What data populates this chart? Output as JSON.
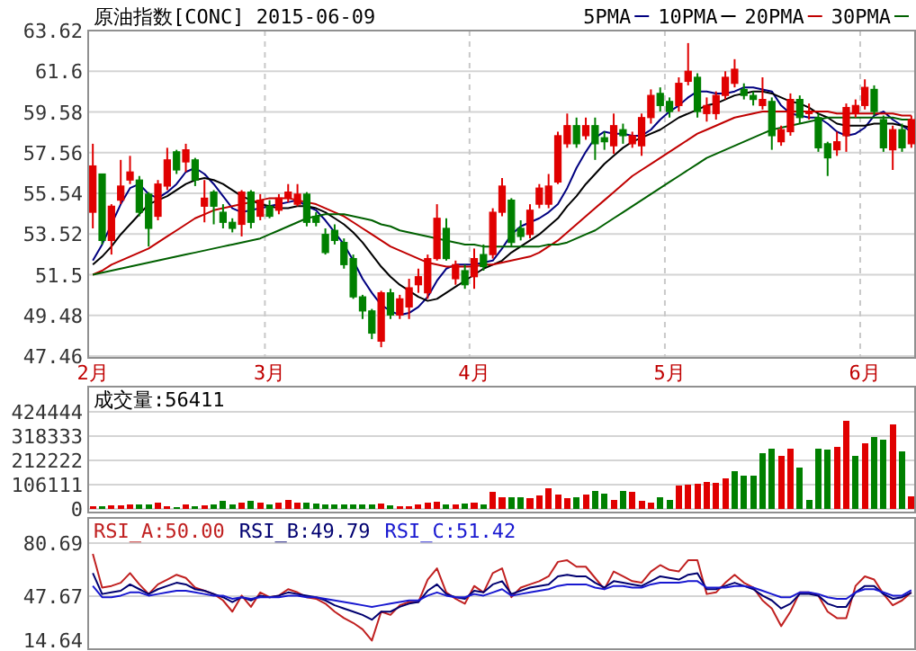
{
  "chart_data": [
    {
      "type": "candlestick",
      "title": "原油指数[CONC] 2015-06-09",
      "categories": [
        "2月",
        null,
        null,
        null,
        null,
        null,
        null,
        null,
        null,
        null,
        null,
        null,
        null,
        null,
        null,
        null,
        null,
        null,
        null,
        "3月",
        null,
        null,
        null,
        null,
        null,
        null,
        null,
        null,
        null,
        null,
        null,
        null,
        null,
        null,
        null,
        null,
        null,
        null,
        null,
        null,
        null,
        "4月",
        null,
        null,
        null,
        null,
        null,
        null,
        null,
        null,
        null,
        null,
        null,
        null,
        null,
        null,
        null,
        null,
        null,
        null,
        null,
        null,
        "5月",
        null,
        null,
        null,
        null,
        null,
        null,
        null,
        null,
        null,
        null,
        null,
        null,
        null,
        null,
        null,
        null,
        null,
        null,
        null,
        null,
        "6月",
        null,
        null,
        null,
        null,
        null
      ],
      "ohlc": [
        [
          54.6,
          58.0,
          53.8,
          56.9
        ],
        [
          56.5,
          56.5,
          53.0,
          53.2
        ],
        [
          53.2,
          55.0,
          52.5,
          54.9
        ],
        [
          55.2,
          57.2,
          55.0,
          55.9
        ],
        [
          56.2,
          57.4,
          56.0,
          56.6
        ],
        [
          56.2,
          56.4,
          54.4,
          54.6
        ],
        [
          55.5,
          55.6,
          52.9,
          53.8
        ],
        [
          54.4,
          56.2,
          54.2,
          56.0
        ],
        [
          55.9,
          57.8,
          55.7,
          57.2
        ],
        [
          57.6,
          57.7,
          56.5,
          56.7
        ],
        [
          57.1,
          58.0,
          56.6,
          57.7
        ],
        [
          57.2,
          57.3,
          55.9,
          56.2
        ],
        [
          54.9,
          56.2,
          54.1,
          55.3
        ],
        [
          55.6,
          55.7,
          54.0,
          54.9
        ],
        [
          54.6,
          55.0,
          53.8,
          54.1
        ],
        [
          54.1,
          54.3,
          53.6,
          53.8
        ],
        [
          54.0,
          55.7,
          53.4,
          55.6
        ],
        [
          55.6,
          55.7,
          53.8,
          54.1
        ],
        [
          54.4,
          55.5,
          54.2,
          55.2
        ],
        [
          54.9,
          55.2,
          54.3,
          54.4
        ],
        [
          54.7,
          55.5,
          54.5,
          55.3
        ],
        [
          55.3,
          56.0,
          55.1,
          55.6
        ],
        [
          55.0,
          56.0,
          54.9,
          55.5
        ],
        [
          55.5,
          55.6,
          53.9,
          54.1
        ],
        [
          54.4,
          54.6,
          53.9,
          54.1
        ],
        [
          53.5,
          53.8,
          52.5,
          52.6
        ],
        [
          53.7,
          54.0,
          53.0,
          53.2
        ],
        [
          53.1,
          53.3,
          51.8,
          52.0
        ],
        [
          52.3,
          52.5,
          50.3,
          50.4
        ],
        [
          50.4,
          50.5,
          49.3,
          49.7
        ],
        [
          49.7,
          49.8,
          48.3,
          48.6
        ],
        [
          48.2,
          50.7,
          47.9,
          50.6
        ],
        [
          50.6,
          50.8,
          49.3,
          49.5
        ],
        [
          49.5,
          50.5,
          49.3,
          50.3
        ],
        [
          49.9,
          51.3,
          49.3,
          50.85
        ],
        [
          51.0,
          51.8,
          50.6,
          51.4
        ],
        [
          50.6,
          52.5,
          50.3,
          52.3
        ],
        [
          52.3,
          55.0,
          52.2,
          54.3
        ],
        [
          53.8,
          54.3,
          52.2,
          52.3
        ],
        [
          51.3,
          52.2,
          51.0,
          52.0
        ],
        [
          51.7,
          52.0,
          50.8,
          51.0
        ],
        [
          51.4,
          52.8,
          50.8,
          52.3
        ],
        [
          52.5,
          53.0,
          51.7,
          51.9
        ],
        [
          52.5,
          54.8,
          52.3,
          54.6
        ],
        [
          54.6,
          56.3,
          54.4,
          55.9
        ],
        [
          55.2,
          55.3,
          52.9,
          53.1
        ],
        [
          53.8,
          54.2,
          53.2,
          53.4
        ],
        [
          53.5,
          55.0,
          53.3,
          54.7
        ],
        [
          55.0,
          56.0,
          54.8,
          55.8
        ],
        [
          55.0,
          56.5,
          54.8,
          55.9
        ],
        [
          56.1,
          58.6,
          56.0,
          58.4
        ],
        [
          58.0,
          59.5,
          57.8,
          58.9
        ],
        [
          58.9,
          59.3,
          57.8,
          58.0
        ],
        [
          58.4,
          59.3,
          58.2,
          58.9
        ],
        [
          58.9,
          59.3,
          57.2,
          58.0
        ],
        [
          58.3,
          58.6,
          57.7,
          58.1
        ],
        [
          57.9,
          59.5,
          57.5,
          58.9
        ],
        [
          58.7,
          59.0,
          58.0,
          58.4
        ],
        [
          58.0,
          58.6,
          57.8,
          58.4
        ],
        [
          57.9,
          59.5,
          57.4,
          59.3
        ],
        [
          59.3,
          60.7,
          59.0,
          60.4
        ],
        [
          60.5,
          60.8,
          59.6,
          59.9
        ],
        [
          60.1,
          60.3,
          59.3,
          59.6
        ],
        [
          59.9,
          61.3,
          59.6,
          61.0
        ],
        [
          61.1,
          63.0,
          60.9,
          61.6
        ],
        [
          61.3,
          61.5,
          59.3,
          59.6
        ],
        [
          59.5,
          60.3,
          59.1,
          59.9
        ],
        [
          59.5,
          60.6,
          59.2,
          60.4
        ],
        [
          60.4,
          61.6,
          60.2,
          61.3
        ],
        [
          61.0,
          62.2,
          60.8,
          61.7
        ],
        [
          60.7,
          61.0,
          60.2,
          60.4
        ],
        [
          60.4,
          60.6,
          59.9,
          60.2
        ],
        [
          59.9,
          61.3,
          59.7,
          60.2
        ],
        [
          60.1,
          60.3,
          57.7,
          58.4
        ],
        [
          58.1,
          58.9,
          57.9,
          58.7
        ],
        [
          58.6,
          60.5,
          58.4,
          60.2
        ],
        [
          60.2,
          60.4,
          59.0,
          59.3
        ],
        [
          59.5,
          60.0,
          59.2,
          59.6
        ],
        [
          59.3,
          59.5,
          57.6,
          57.8
        ],
        [
          58.0,
          58.1,
          56.4,
          57.3
        ],
        [
          57.7,
          58.6,
          57.4,
          58.1
        ],
        [
          58.4,
          60.0,
          57.6,
          59.8
        ],
        [
          59.5,
          60.2,
          59.3,
          59.9
        ],
        [
          59.9,
          61.2,
          59.7,
          60.8
        ],
        [
          60.7,
          60.9,
          59.4,
          59.6
        ],
        [
          59.2,
          59.4,
          57.6,
          57.8
        ],
        [
          57.7,
          58.9,
          56.7,
          58.7
        ],
        [
          58.7,
          59.0,
          57.6,
          57.8
        ],
        [
          58.0,
          59.4,
          57.8,
          59.2
        ]
      ],
      "series": [
        {
          "name": "5PMA",
          "type": "line",
          "color": "#000080",
          "values": [
            52.2,
            53.0,
            54.0,
            55.0,
            55.8,
            56.0,
            55.5,
            55.3,
            55.6,
            56.0,
            56.6,
            56.8,
            56.5,
            56.0,
            55.4,
            54.8,
            54.6,
            54.7,
            54.8,
            54.9,
            55.0,
            55.1,
            55.2,
            54.9,
            54.7,
            54.2,
            53.6,
            53.0,
            52.2,
            51.3,
            50.6,
            50.0,
            49.7,
            49.5,
            49.6,
            49.9,
            50.4,
            51.2,
            51.8,
            52.0,
            52.0,
            52.0,
            52.1,
            52.2,
            52.8,
            53.5,
            53.9,
            54.1,
            54.3,
            54.6,
            55.0,
            55.8,
            56.8,
            57.6,
            58.3,
            58.6,
            58.5,
            58.5,
            58.4,
            58.4,
            58.7,
            59.2,
            59.6,
            59.9,
            60.3,
            60.6,
            60.6,
            60.5,
            60.5,
            60.6,
            60.8,
            60.8,
            60.7,
            60.6,
            59.9,
            59.5,
            59.4,
            59.3,
            59.3,
            59.0,
            58.6,
            58.4,
            58.5,
            58.8,
            59.4,
            59.6,
            59.2,
            58.9,
            58.6
          ]
        },
        {
          "name": "10PMA",
          "type": "line",
          "color": "#000000",
          "values": [
            52.0,
            52.4,
            52.9,
            53.5,
            54.0,
            54.5,
            55.0,
            55.2,
            55.4,
            55.7,
            56.0,
            56.2,
            56.3,
            56.2,
            56.0,
            55.7,
            55.4,
            55.2,
            55.0,
            54.9,
            54.8,
            54.8,
            54.9,
            54.9,
            54.8,
            54.6,
            54.3,
            54.0,
            53.6,
            53.1,
            52.5,
            51.9,
            51.4,
            51.0,
            50.7,
            50.4,
            50.2,
            50.3,
            50.6,
            50.9,
            51.2,
            51.5,
            51.8,
            52.0,
            52.2,
            52.6,
            52.9,
            53.2,
            53.5,
            53.9,
            54.3,
            54.9,
            55.4,
            56.0,
            56.5,
            57.0,
            57.4,
            57.8,
            58.1,
            58.3,
            58.5,
            58.7,
            59.0,
            59.3,
            59.5,
            59.7,
            59.9,
            60.0,
            60.2,
            60.4,
            60.5,
            60.6,
            60.6,
            60.5,
            60.3,
            60.1,
            60.0,
            59.8,
            59.5,
            59.3,
            59.0,
            58.9,
            58.9,
            58.9,
            59.0,
            59.0,
            59.0,
            58.9,
            58.8
          ]
        },
        {
          "name": "20PMA",
          "type": "line",
          "color": "#c00000",
          "values": [
            51.5,
            51.7,
            52.0,
            52.2,
            52.4,
            52.6,
            52.8,
            53.1,
            53.4,
            53.7,
            54.0,
            54.3,
            54.5,
            54.7,
            54.8,
            54.9,
            55.0,
            55.1,
            55.2,
            55.3,
            55.3,
            55.3,
            55.2,
            55.1,
            55.0,
            54.8,
            54.6,
            54.4,
            54.1,
            53.8,
            53.5,
            53.2,
            52.9,
            52.7,
            52.5,
            52.3,
            52.1,
            52.0,
            51.9,
            51.9,
            51.9,
            51.9,
            52.0,
            52.0,
            52.1,
            52.2,
            52.3,
            52.4,
            52.6,
            52.9,
            53.2,
            53.6,
            54.0,
            54.4,
            54.8,
            55.2,
            55.6,
            56.0,
            56.4,
            56.7,
            57.0,
            57.3,
            57.6,
            57.9,
            58.2,
            58.5,
            58.7,
            58.9,
            59.1,
            59.3,
            59.4,
            59.5,
            59.6,
            59.6,
            59.6,
            59.6,
            59.6,
            59.6,
            59.6,
            59.6,
            59.5,
            59.5,
            59.5,
            59.5,
            59.5,
            59.5,
            59.5,
            59.4,
            59.4
          ]
        },
        {
          "name": "30PMA",
          "type": "line",
          "color": "#006000",
          "values": [
            51.5,
            51.6,
            51.7,
            51.8,
            51.9,
            52.0,
            52.1,
            52.2,
            52.3,
            52.4,
            52.5,
            52.6,
            52.7,
            52.8,
            52.9,
            53.0,
            53.1,
            53.2,
            53.3,
            53.5,
            53.7,
            53.9,
            54.1,
            54.3,
            54.4,
            54.5,
            54.5,
            54.5,
            54.4,
            54.3,
            54.2,
            54.0,
            53.9,
            53.7,
            53.6,
            53.5,
            53.4,
            53.3,
            53.2,
            53.1,
            53.0,
            53.0,
            52.9,
            52.9,
            52.9,
            52.9,
            52.9,
            52.9,
            52.9,
            53.0,
            53.0,
            53.1,
            53.3,
            53.5,
            53.7,
            54.0,
            54.3,
            54.6,
            54.9,
            55.2,
            55.5,
            55.8,
            56.1,
            56.4,
            56.7,
            57.0,
            57.3,
            57.5,
            57.7,
            57.9,
            58.1,
            58.3,
            58.5,
            58.7,
            58.8,
            58.9,
            59.0,
            59.1,
            59.2,
            59.3,
            59.3,
            59.3,
            59.3,
            59.3,
            59.3,
            59.3,
            59.3,
            59.2,
            59.2
          ]
        }
      ],
      "ylim": [
        47.46,
        63.62
      ],
      "yticks": [
        47.46,
        49.48,
        51.5,
        53.52,
        55.54,
        57.56,
        59.58,
        61.6,
        63.62
      ],
      "grid": true,
      "legend": "top right"
    },
    {
      "type": "bar",
      "title": "成交量:56411",
      "categories": [
        null,
        null,
        null,
        null,
        null,
        null,
        null,
        null,
        null,
        null,
        null,
        null,
        null,
        null,
        null,
        null,
        null,
        null,
        null,
        null,
        null,
        null,
        null,
        null,
        null,
        null,
        null,
        null,
        null,
        null,
        null,
        null,
        null,
        null,
        null,
        null,
        null,
        null,
        null,
        null,
        null,
        null,
        null,
        null,
        null,
        null,
        null,
        null,
        null,
        null,
        null,
        null,
        null,
        null,
        null,
        null,
        null,
        null,
        null,
        null,
        null,
        null,
        null,
        null,
        null,
        null,
        null,
        null,
        null,
        null,
        null,
        null,
        null,
        null,
        null,
        null,
        null,
        null,
        null,
        null,
        null,
        null,
        null,
        null,
        null,
        null,
        null,
        null,
        null
      ],
      "values": [
        13000,
        13000,
        16000,
        16000,
        19000,
        21000,
        21000,
        27000,
        13000,
        8000,
        19000,
        13000,
        16000,
        21000,
        34000,
        19000,
        27000,
        34000,
        27000,
        21000,
        27000,
        40000,
        27000,
        27000,
        24000,
        21000,
        21000,
        21000,
        19000,
        21000,
        19000,
        24000,
        16000,
        13000,
        13000,
        19000,
        27000,
        32000,
        21000,
        19000,
        24000,
        27000,
        19000,
        74000,
        53000,
        53000,
        53000,
        48000,
        58000,
        90000,
        64000,
        48000,
        53000,
        61000,
        80000,
        66000,
        40000,
        80000,
        74000,
        34000,
        27000,
        53000,
        40000,
        101000,
        106000,
        111000,
        119000,
        114000,
        133000,
        164000,
        146000,
        146000,
        244000,
        265000,
        233000,
        265000,
        180000,
        40000,
        265000,
        260000,
        273000,
        384000,
        233000,
        286000,
        313000,
        302000,
        371000,
        252000,
        56411
      ],
      "colors": [
        "#e00000",
        "#008000",
        "#e00000",
        "#e00000",
        "#e00000",
        "#008000",
        "#008000",
        "#e00000",
        "#e00000",
        "#008000",
        "#e00000",
        "#008000",
        "#e00000",
        "#008000",
        "#008000",
        "#008000",
        "#e00000",
        "#008000",
        "#e00000",
        "#008000",
        "#e00000",
        "#e00000",
        "#e00000",
        "#008000",
        "#008000",
        "#008000",
        "#008000",
        "#008000",
        "#008000",
        "#008000",
        "#008000",
        "#e00000",
        "#008000",
        "#e00000",
        "#e00000",
        "#e00000",
        "#e00000",
        "#e00000",
        "#008000",
        "#e00000",
        "#008000",
        "#e00000",
        "#008000",
        "#e00000",
        "#e00000",
        "#008000",
        "#008000",
        "#e00000",
        "#e00000",
        "#e00000",
        "#e00000",
        "#e00000",
        "#008000",
        "#e00000",
        "#008000",
        "#008000",
        "#e00000",
        "#008000",
        "#e00000",
        "#e00000",
        "#e00000",
        "#008000",
        "#008000",
        "#e00000",
        "#e00000",
        "#e00000",
        "#e00000",
        "#e00000",
        "#e00000",
        "#008000",
        "#008000",
        "#008000",
        "#008000",
        "#008000",
        "#e00000",
        "#e00000",
        "#008000",
        "#008000",
        "#008000",
        "#008000",
        "#e00000",
        "#e00000",
        "#008000",
        "#e00000",
        "#008000",
        "#008000",
        "#e00000",
        "#008000",
        "#e00000"
      ],
      "ylim": [
        0,
        424444
      ],
      "yticks": [
        0,
        106111,
        212222,
        318333,
        424444
      ],
      "grid": "y"
    },
    {
      "type": "line",
      "categories": [
        null,
        null,
        null,
        null,
        null,
        null,
        null,
        null,
        null,
        null,
        null,
        null,
        null,
        null,
        null,
        null,
        null,
        null,
        null,
        null,
        null,
        null,
        null,
        null,
        null,
        null,
        null,
        null,
        null,
        null,
        null,
        null,
        null,
        null,
        null,
        null,
        null,
        null,
        null,
        null,
        null,
        null,
        null,
        null,
        null,
        null,
        null,
        null,
        null,
        null,
        null,
        null,
        null,
        null,
        null,
        null,
        null,
        null,
        null,
        null,
        null,
        null,
        null,
        null,
        null,
        null,
        null,
        null,
        null,
        null,
        null,
        null,
        null,
        null,
        null,
        null,
        null,
        null,
        null,
        null,
        null,
        null,
        null,
        null,
        null,
        null,
        null,
        null,
        null
      ],
      "series": [
        {
          "name": "RSI_A:50.00",
          "color": "#c02020",
          "values": [
            74,
            53,
            54,
            56,
            62,
            55,
            49,
            55,
            58,
            61,
            59,
            53,
            51,
            49,
            45,
            38,
            48,
            41,
            50,
            47,
            48,
            52,
            50,
            47,
            46,
            43,
            38,
            34,
            31,
            27,
            20,
            38,
            36,
            42,
            44,
            44,
            58,
            65,
            50,
            46,
            43,
            54,
            50,
            62,
            65,
            47,
            53,
            55,
            57,
            60,
            69,
            70,
            66,
            66,
            59,
            52,
            63,
            60,
            57,
            56,
            63,
            67,
            64,
            63,
            70,
            70,
            49,
            50,
            56,
            61,
            56,
            53,
            45,
            40,
            29,
            38,
            50,
            50,
            48,
            38,
            34,
            34,
            54,
            60,
            58,
            49,
            42,
            45,
            50.0
          ]
        },
        {
          "name": "RSI_B:49.79",
          "color": "#000070",
          "values": [
            62,
            49,
            50,
            51,
            55,
            52,
            49,
            52,
            54,
            56,
            55,
            52,
            51,
            49,
            47,
            44,
            47,
            45,
            48,
            47,
            48,
            50,
            49,
            48,
            47,
            45,
            42,
            40,
            38,
            36,
            33,
            38,
            38,
            41,
            43,
            44,
            51,
            55,
            49,
            47,
            46,
            51,
            50,
            55,
            57,
            49,
            51,
            53,
            54,
            55,
            60,
            61,
            60,
            60,
            56,
            53,
            57,
            56,
            55,
            54,
            57,
            60,
            59,
            58,
            61,
            62,
            52,
            52,
            54,
            56,
            54,
            52,
            48,
            45,
            40,
            43,
            49,
            49,
            48,
            43,
            41,
            41,
            50,
            54,
            54,
            49,
            46,
            47,
            49.79
          ]
        },
        {
          "name": "RSI_C:51.42",
          "color": "#1818d0",
          "values": [
            54,
            47,
            47,
            48,
            50,
            50,
            48,
            49,
            50,
            51,
            51,
            50,
            49,
            48,
            48,
            46,
            47,
            46,
            47,
            47,
            47,
            48,
            48,
            47,
            47,
            46,
            45,
            44,
            43,
            42,
            41,
            42,
            43,
            44,
            45,
            45,
            48,
            50,
            48,
            47,
            47,
            49,
            48,
            50,
            52,
            48,
            49,
            50,
            51,
            52,
            54,
            55,
            55,
            55,
            53,
            52,
            54,
            54,
            53,
            53,
            55,
            56,
            56,
            56,
            57,
            57,
            53,
            53,
            53,
            54,
            54,
            53,
            51,
            49,
            47,
            47,
            50,
            50,
            49,
            47,
            46,
            46,
            50,
            52,
            52,
            50,
            48,
            48,
            51.42
          ]
        }
      ],
      "ylim": [
        14.64,
        80.69
      ],
      "yticks": [
        14.64,
        47.67,
        80.69
      ],
      "grid": "y",
      "legend": "top left"
    }
  ]
}
